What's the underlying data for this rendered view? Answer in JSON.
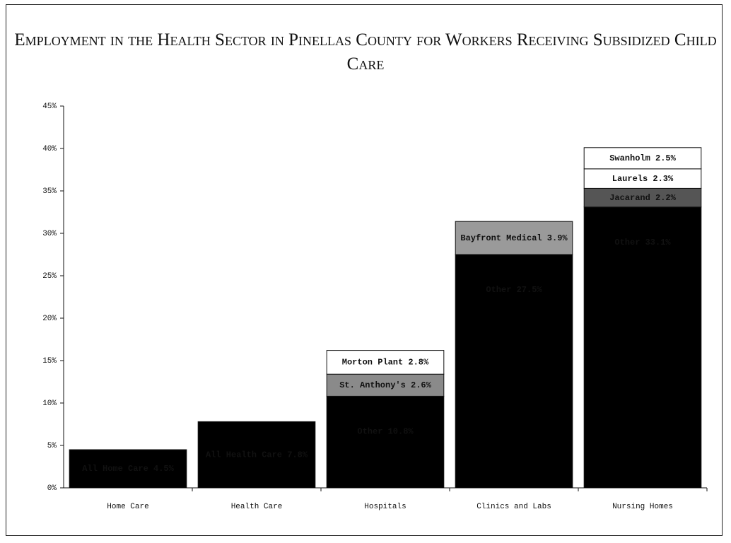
{
  "chart_data": {
    "type": "stacked_bar",
    "title": "Employment in the Health Sector in Pinellas County for Workers Receiving Subsidized Child Care",
    "categories": [
      "Home Care",
      "Health Care",
      "Hospitals",
      "Clinics and Labs",
      "Nursing Homes"
    ],
    "bars": [
      {
        "segments": [
          {
            "label": "All Home Care 4.5%",
            "value": 4.5,
            "color": "#000000"
          }
        ]
      },
      {
        "segments": [
          {
            "label": "All Health Care 7.8%",
            "value": 7.8,
            "color": "#000000"
          }
        ]
      },
      {
        "segments": [
          {
            "label": "Other 10.8%",
            "value": 10.8,
            "color": "#000000"
          },
          {
            "label": "St. Anthony's 2.6%",
            "value": 2.6,
            "color": "#8a8a8a"
          },
          {
            "label": "Morton Plant 2.8%",
            "value": 2.8,
            "color": "#ffffff"
          }
        ]
      },
      {
        "segments": [
          {
            "label": "Other 27.5%",
            "value": 27.5,
            "color": "#000000"
          },
          {
            "label": "Bayfront Medical 3.9%",
            "value": 3.9,
            "color": "#9a9a9a"
          }
        ]
      },
      {
        "segments": [
          {
            "label": "Other 33.1%",
            "value": 33.1,
            "color": "#000000"
          },
          {
            "label": "Jacarand 2.2%",
            "value": 2.2,
            "color": "#555555"
          },
          {
            "label": "Laurels 2.3%",
            "value": 2.3,
            "color": "#ffffff"
          },
          {
            "label": "Swanholm 2.5%",
            "value": 2.5,
            "color": "#ffffff"
          }
        ]
      }
    ],
    "ylim": [
      0,
      45
    ],
    "yticks": [
      {
        "value": 0,
        "label": "0%"
      },
      {
        "value": 5,
        "label": "5%"
      },
      {
        "value": 10,
        "label": "10%"
      },
      {
        "value": 15,
        "label": "15%"
      },
      {
        "value": 20,
        "label": "20%"
      },
      {
        "value": 25,
        "label": "25%"
      },
      {
        "value": 30,
        "label": "30%"
      },
      {
        "value": 35,
        "label": "35%"
      },
      {
        "value": 40,
        "label": "40%"
      },
      {
        "value": 45,
        "label": "45%"
      }
    ]
  }
}
